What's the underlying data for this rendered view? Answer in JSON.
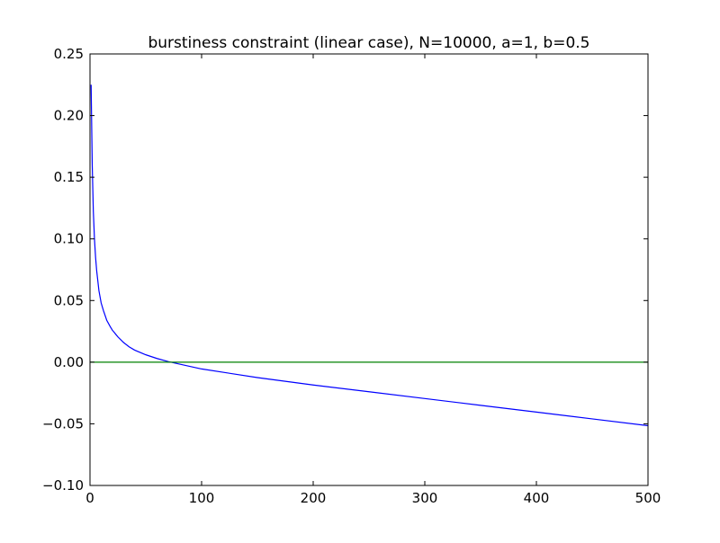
{
  "chart_data": {
    "type": "line",
    "title": "burstiness constraint (linear case), N=10000, a=1, b=0.5",
    "xlabel": "",
    "ylabel": "",
    "xlim": [
      0,
      500
    ],
    "ylim": [
      -0.1,
      0.25
    ],
    "x_ticks": [
      0,
      100,
      200,
      300,
      400,
      500
    ],
    "x_tick_labels": [
      "0",
      "100",
      "200",
      "300",
      "400",
      "500"
    ],
    "y_ticks": [
      -0.1,
      -0.05,
      0.0,
      0.05,
      0.1,
      0.15,
      0.2,
      0.25
    ],
    "y_tick_labels": [
      "−0.10",
      "−0.05",
      "0.00",
      "0.05",
      "0.10",
      "0.15",
      "0.20",
      "0.25"
    ],
    "grid": false,
    "legend": "none",
    "series": [
      {
        "color": "#0000ff",
        "x": [
          1,
          2,
          3,
          4,
          5,
          6,
          8,
          10,
          12,
          15,
          18,
          20,
          25,
          30,
          35,
          40,
          50,
          60,
          70,
          80,
          100,
          150,
          200,
          250,
          300,
          350,
          400,
          450,
          500
        ],
        "y": [
          0.225,
          0.16,
          0.122,
          0.1,
          0.085,
          0.074,
          0.058,
          0.048,
          0.042,
          0.034,
          0.029,
          0.026,
          0.0205,
          0.016,
          0.0125,
          0.0098,
          0.006,
          0.003,
          0.0005,
          -0.0015,
          -0.0055,
          -0.0125,
          -0.0185,
          -0.024,
          -0.0295,
          -0.035,
          -0.0405,
          -0.046,
          -0.0515
        ]
      },
      {
        "color": "#008000",
        "x": [
          0,
          500
        ],
        "y": [
          0.0,
          0.0
        ]
      }
    ]
  }
}
